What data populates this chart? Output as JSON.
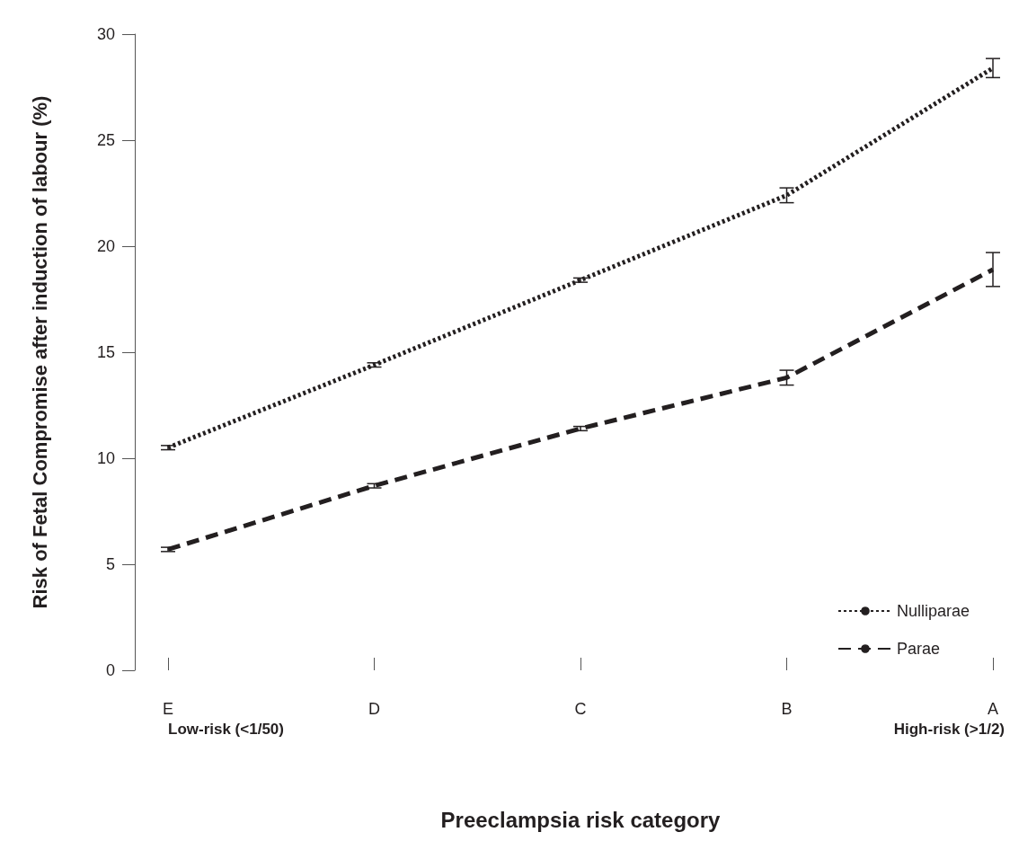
{
  "chart_data": {
    "type": "line",
    "ylabel": "Risk of Fetal Compromise after induction of labour (%)",
    "xlabel": "Preeclampsia risk category",
    "categories": [
      "E",
      "D",
      "C",
      "B",
      "A"
    ],
    "series": [
      {
        "name": "Nulliparae",
        "color": "#231f20",
        "line_style": "dotted",
        "values": [
          10.5,
          14.4,
          18.4,
          22.4,
          28.4
        ],
        "errors": [
          0.1,
          0.1,
          0.1,
          0.35,
          0.45
        ]
      },
      {
        "name": "Parae",
        "color": "#231f20",
        "line_style": "dashed",
        "values": [
          5.7,
          8.7,
          11.4,
          13.8,
          18.9
        ],
        "errors": [
          0.1,
          0.1,
          0.1,
          0.35,
          0.8
        ]
      }
    ],
    "ylim": [
      0,
      30
    ],
    "yticks": [
      0,
      5,
      10,
      15,
      20,
      25,
      30
    ],
    "grid": false,
    "legend": "bottom right",
    "marker": "none",
    "annotations": [
      "Low-risk (<1/50)",
      "High-risk (>1/2)"
    ]
  }
}
